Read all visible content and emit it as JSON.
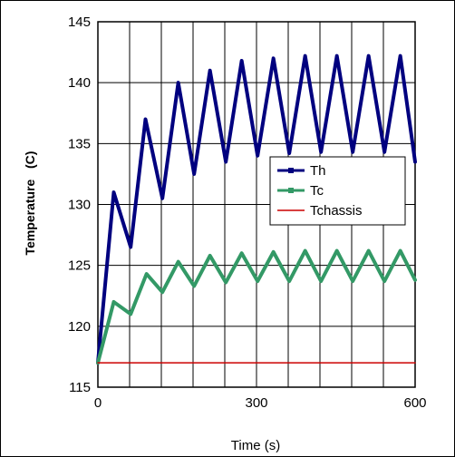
{
  "chart_data": {
    "type": "line",
    "title": "",
    "xlabel": "Time (s)",
    "ylabel": "Temperature   (C)",
    "xlim": [
      0,
      600
    ],
    "ylim": [
      115,
      145
    ],
    "xticks": [
      0,
      300,
      600
    ],
    "yticks": [
      115,
      120,
      125,
      130,
      135,
      140,
      145
    ],
    "x_grid_step": 60,
    "y_grid_step": 5,
    "grid": true,
    "legend_position": "center-right",
    "series": [
      {
        "name": "Th",
        "color": "#00007f",
        "x": [
          0,
          30,
          62,
          90,
          122,
          152,
          182,
          212,
          242,
          272,
          302,
          332,
          362,
          392,
          422,
          452,
          482,
          512,
          542,
          572,
          600
        ],
        "y": [
          117,
          131,
          126.5,
          137,
          130.5,
          140,
          132.5,
          141,
          133.5,
          141.8,
          134,
          142,
          134.2,
          142.2,
          134.3,
          142.2,
          134.3,
          142.2,
          134.3,
          142.2,
          133.5
        ]
      },
      {
        "name": "Tc",
        "color": "#339966",
        "x": [
          0,
          30,
          62,
          92,
          122,
          152,
          182,
          212,
          242,
          272,
          302,
          332,
          362,
          392,
          422,
          452,
          482,
          512,
          542,
          572,
          600
        ],
        "y": [
          117,
          122,
          121,
          124.3,
          122.8,
          125.3,
          123.3,
          125.8,
          123.6,
          126,
          123.7,
          126.1,
          123.7,
          126.2,
          123.7,
          126.2,
          123.7,
          126.2,
          123.7,
          126.2,
          123.8
        ]
      },
      {
        "name": "Tchassis",
        "color": "#cc0000",
        "x": [
          0,
          600
        ],
        "y": [
          117,
          117
        ]
      }
    ]
  }
}
